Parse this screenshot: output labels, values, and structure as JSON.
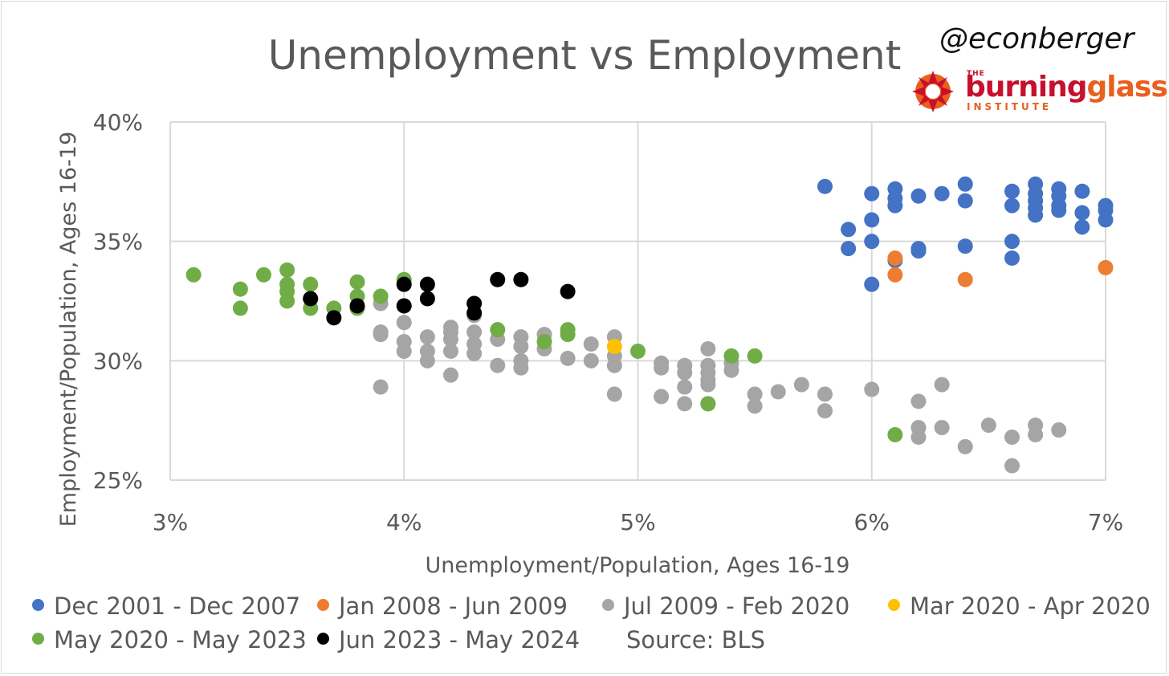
{
  "header": {
    "title": "Unemployment vs Employment",
    "handle": "@econberger",
    "logo_the": "THE",
    "logo_burning": "burning",
    "logo_glass": "glass",
    "logo_institute": "INSTITUTE"
  },
  "colors": {
    "blue": "#4472c4",
    "orange": "#ed7d31",
    "gray": "#a5a5a5",
    "yellow": "#ffc000",
    "green": "#70ad47",
    "black": "#000000",
    "grid": "#d9d9d9",
    "text": "#595959"
  },
  "legend": {
    "items": [
      {
        "label": "Dec 2001 - Dec 2007",
        "color": "#4472c4"
      },
      {
        "label": "Jan 2008 - Jun 2009",
        "color": "#ed7d31"
      },
      {
        "label": "Jul 2009 - Feb 2020",
        "color": "#a5a5a5"
      },
      {
        "label": "Mar 2020 - Apr 2020",
        "color": "#ffc000"
      },
      {
        "label": "May 2020 - May 2023",
        "color": "#70ad47"
      },
      {
        "label": "Jun 2023 - May 2024",
        "color": "#000000"
      }
    ],
    "source": "Source: BLS"
  },
  "chart_data": {
    "type": "scatter",
    "title": "Unemployment vs Employment",
    "xlabel": "Unemployment/Population, Ages 16-19",
    "ylabel": "Employment/Population, Ages 16-19",
    "xlim": [
      3,
      7
    ],
    "ylim": [
      25,
      40
    ],
    "x_ticks": [
      "3%",
      "4%",
      "5%",
      "6%",
      "7%"
    ],
    "y_ticks": [
      "25%",
      "30%",
      "35%",
      "40%"
    ],
    "grid": true,
    "legend_position": "bottom",
    "series": [
      {
        "name": "Dec 2001 - Dec 2007",
        "points": [
          [
            5.8,
            37.3
          ],
          [
            6.0,
            37.0
          ],
          [
            6.1,
            37.2
          ],
          [
            6.1,
            36.8
          ],
          [
            6.1,
            36.5
          ],
          [
            6.2,
            36.9
          ],
          [
            6.3,
            37.0
          ],
          [
            6.4,
            37.4
          ],
          [
            6.4,
            36.7
          ],
          [
            6.6,
            37.1
          ],
          [
            6.6,
            36.5
          ],
          [
            6.7,
            37.4
          ],
          [
            6.7,
            37.0
          ],
          [
            6.7,
            36.7
          ],
          [
            6.7,
            36.4
          ],
          [
            6.7,
            36.1
          ],
          [
            6.8,
            37.2
          ],
          [
            6.8,
            36.9
          ],
          [
            6.8,
            36.5
          ],
          [
            6.8,
            36.3
          ],
          [
            6.9,
            37.1
          ],
          [
            6.9,
            36.2
          ],
          [
            6.9,
            35.6
          ],
          [
            7.0,
            36.5
          ],
          [
            7.0,
            36.3
          ],
          [
            7.0,
            35.9
          ],
          [
            5.9,
            35.5
          ],
          [
            5.9,
            34.7
          ],
          [
            6.0,
            35.9
          ],
          [
            6.0,
            35.0
          ],
          [
            6.0,
            33.2
          ],
          [
            6.1,
            34.2
          ],
          [
            6.2,
            34.7
          ],
          [
            6.2,
            34.6
          ],
          [
            6.4,
            34.8
          ],
          [
            6.6,
            35.0
          ],
          [
            6.6,
            34.3
          ]
        ]
      },
      {
        "name": "Jan 2008 - Jun 2009",
        "points": [
          [
            6.1,
            34.3
          ],
          [
            6.1,
            33.6
          ],
          [
            6.4,
            33.4
          ],
          [
            7.0,
            33.9
          ]
        ]
      },
      {
        "name": "Jul 2009 - Feb 2020",
        "points": [
          [
            3.9,
            32.4
          ],
          [
            3.9,
            31.2
          ],
          [
            3.9,
            31.1
          ],
          [
            3.9,
            28.9
          ],
          [
            4.0,
            31.6
          ],
          [
            4.0,
            30.8
          ],
          [
            4.0,
            30.4
          ],
          [
            4.1,
            31.0
          ],
          [
            4.1,
            30.4
          ],
          [
            4.1,
            30.0
          ],
          [
            4.2,
            31.4
          ],
          [
            4.2,
            31.2
          ],
          [
            4.2,
            30.9
          ],
          [
            4.2,
            30.4
          ],
          [
            4.2,
            29.4
          ],
          [
            4.3,
            31.9
          ],
          [
            4.3,
            31.2
          ],
          [
            4.3,
            30.7
          ],
          [
            4.3,
            30.3
          ],
          [
            4.4,
            30.9
          ],
          [
            4.4,
            29.8
          ],
          [
            4.5,
            31.0
          ],
          [
            4.5,
            30.6
          ],
          [
            4.5,
            30.0
          ],
          [
            4.5,
            29.7
          ],
          [
            4.6,
            31.1
          ],
          [
            4.6,
            30.5
          ],
          [
            4.7,
            30.1
          ],
          [
            4.8,
            30.7
          ],
          [
            4.8,
            30.0
          ],
          [
            4.9,
            31.0
          ],
          [
            4.9,
            30.2
          ],
          [
            4.9,
            29.8
          ],
          [
            4.9,
            28.6
          ],
          [
            5.1,
            29.9
          ],
          [
            5.1,
            29.7
          ],
          [
            5.1,
            28.5
          ],
          [
            5.2,
            29.8
          ],
          [
            5.2,
            29.5
          ],
          [
            5.2,
            28.9
          ],
          [
            5.2,
            28.2
          ],
          [
            5.3,
            30.5
          ],
          [
            5.3,
            29.8
          ],
          [
            5.3,
            29.5
          ],
          [
            5.3,
            29.2
          ],
          [
            5.3,
            29.0
          ],
          [
            5.3,
            28.2
          ],
          [
            5.4,
            29.9
          ],
          [
            5.4,
            29.6
          ],
          [
            5.5,
            28.6
          ],
          [
            5.5,
            28.1
          ],
          [
            5.6,
            28.7
          ],
          [
            5.7,
            29.0
          ],
          [
            5.8,
            28.6
          ],
          [
            5.8,
            27.9
          ],
          [
            6.0,
            28.8
          ],
          [
            6.2,
            28.3
          ],
          [
            6.2,
            27.2
          ],
          [
            6.2,
            26.8
          ],
          [
            6.3,
            29.0
          ],
          [
            6.3,
            27.2
          ],
          [
            6.4,
            26.4
          ],
          [
            6.5,
            27.3
          ],
          [
            6.6,
            26.8
          ],
          [
            6.6,
            25.6
          ],
          [
            6.7,
            27.3
          ],
          [
            6.7,
            26.9
          ],
          [
            6.8,
            27.1
          ]
        ]
      },
      {
        "name": "Mar 2020 - Apr 2020",
        "points": [
          [
            4.9,
            30.6
          ]
        ]
      },
      {
        "name": "May 2020 - May 2023",
        "points": [
          [
            3.1,
            33.6
          ],
          [
            3.3,
            33.0
          ],
          [
            3.3,
            32.2
          ],
          [
            3.4,
            33.6
          ],
          [
            3.5,
            33.8
          ],
          [
            3.5,
            33.2
          ],
          [
            3.5,
            32.9
          ],
          [
            3.5,
            32.5
          ],
          [
            3.6,
            33.2
          ],
          [
            3.6,
            32.6
          ],
          [
            3.6,
            32.2
          ],
          [
            3.7,
            32.2
          ],
          [
            3.8,
            33.3
          ],
          [
            3.8,
            32.7
          ],
          [
            3.8,
            32.2
          ],
          [
            3.9,
            32.7
          ],
          [
            4.0,
            33.4
          ],
          [
            4.4,
            31.3
          ],
          [
            4.6,
            30.8
          ],
          [
            4.7,
            31.3
          ],
          [
            4.7,
            31.1
          ],
          [
            5.0,
            30.4
          ],
          [
            5.3,
            28.2
          ],
          [
            5.4,
            30.2
          ],
          [
            5.5,
            30.2
          ],
          [
            6.1,
            26.9
          ]
        ]
      },
      {
        "name": "Jun 2023 - May 2024",
        "points": [
          [
            3.6,
            32.6
          ],
          [
            3.7,
            31.8
          ],
          [
            3.8,
            32.3
          ],
          [
            4.0,
            33.2
          ],
          [
            4.0,
            32.3
          ],
          [
            4.1,
            33.2
          ],
          [
            4.1,
            32.6
          ],
          [
            4.3,
            32.4
          ],
          [
            4.3,
            32.0
          ],
          [
            4.4,
            33.4
          ],
          [
            4.5,
            33.4
          ],
          [
            4.7,
            32.9
          ]
        ]
      }
    ]
  }
}
